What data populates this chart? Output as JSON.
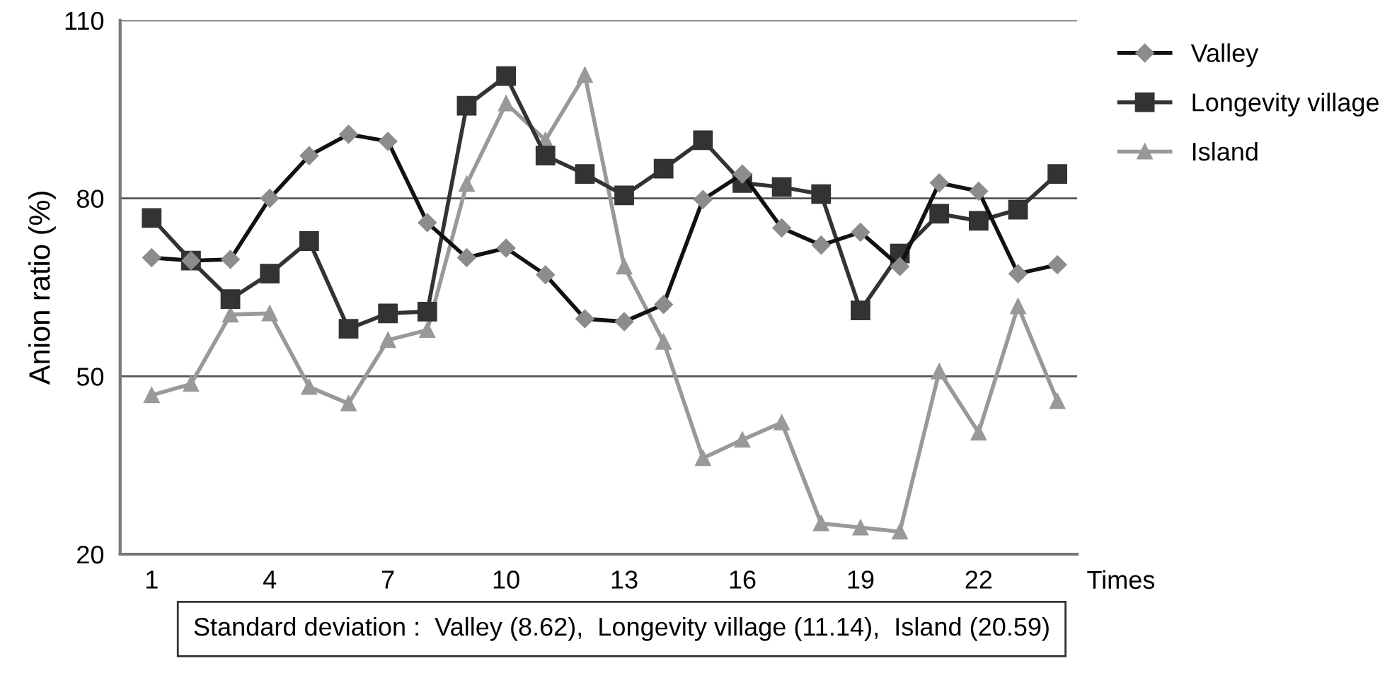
{
  "chart_data": {
    "type": "line",
    "ylabel": "Anion ratio (%)",
    "xlabel": "Times",
    "x": [
      1,
      2,
      3,
      4,
      5,
      6,
      7,
      8,
      9,
      10,
      11,
      12,
      13,
      14,
      15,
      16,
      17,
      18,
      19,
      20,
      21,
      22,
      23,
      24
    ],
    "xlim": [
      0.2,
      24.5
    ],
    "xticks": [
      1,
      4,
      7,
      10,
      13,
      16,
      19,
      22
    ],
    "ylim": [
      20,
      110
    ],
    "yticks": [
      20,
      50,
      80,
      110
    ],
    "grid": "y",
    "legend": "top right",
    "series": [
      {
        "name": "Valley",
        "color": "#111111",
        "marker": "diamond",
        "values": [
          70,
          69.5,
          69.7,
          80,
          87.2,
          90.8,
          89.6,
          75.9,
          70,
          71.6,
          67.1,
          59.7,
          59.2,
          62.1,
          79.8,
          84.1,
          75,
          72.1,
          74.3,
          68.5,
          82.6,
          81.2,
          67.3,
          68.8
        ]
      },
      {
        "name": "Longevity village",
        "color": "#333333",
        "marker": "square",
        "values": [
          76.7,
          69.5,
          63,
          67.3,
          72.8,
          58,
          60.6,
          60.9,
          95.6,
          100.6,
          87.2,
          84.1,
          80.5,
          85,
          89.8,
          82.6,
          81.9,
          80.7,
          61.1,
          70.7,
          77.4,
          76.2,
          78.1,
          84.1
        ]
      },
      {
        "name": "Island",
        "color": "#999999",
        "marker": "triangle",
        "values": [
          46.8,
          48.7,
          60.4,
          60.6,
          48.2,
          45.4,
          56.1,
          57.8,
          82.4,
          96,
          89.8,
          100.8,
          68.5,
          55.8,
          36.2,
          39.3,
          42.2,
          25.2,
          24.5,
          23.8,
          50.8,
          40.5,
          61.8,
          45.8
        ]
      }
    ],
    "annotations": [
      "Standard deviation :  Valley (8.62),  Longevity village (11.14),  Island (20.59)"
    ]
  }
}
